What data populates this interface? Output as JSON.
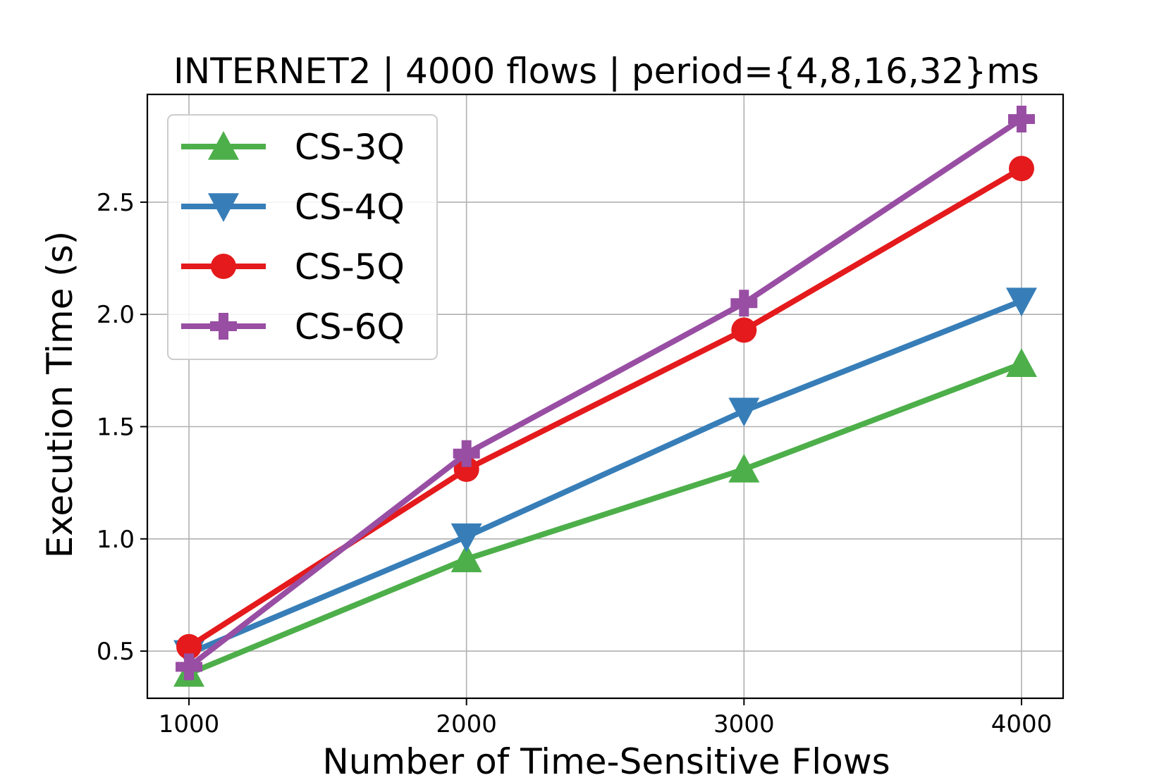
{
  "chart_data": {
    "type": "line",
    "title": "INTERNET2 | 4000 flows | period={4,8,16,32}ms",
    "xlabel": "Number of Time-Sensitive Flows",
    "ylabel": "Execution Time (s)",
    "x": [
      1000,
      2000,
      3000,
      4000
    ],
    "x_ticks": [
      "1000",
      "2000",
      "3000",
      "4000"
    ],
    "y_ticks": [
      "0.5",
      "1.0",
      "1.5",
      "2.0",
      "2.5"
    ],
    "xlim": [
      850,
      4150
    ],
    "ylim": [
      0.29,
      2.98
    ],
    "grid": true,
    "legend_position": "upper-left",
    "series": [
      {
        "name": "CS-3Q",
        "color": "#4daf4a",
        "marker": "triangle-up",
        "values": [
          0.4,
          0.91,
          1.31,
          1.78
        ]
      },
      {
        "name": "CS-4Q",
        "color": "#377eb8",
        "marker": "triangle-down",
        "values": [
          0.49,
          1.01,
          1.57,
          2.06
        ]
      },
      {
        "name": "CS-5Q",
        "color": "#e41a1c",
        "marker": "circle",
        "values": [
          0.52,
          1.31,
          1.93,
          2.65
        ]
      },
      {
        "name": "CS-6Q",
        "color": "#984ea3",
        "marker": "plus",
        "values": [
          0.43,
          1.38,
          2.05,
          2.87
        ]
      }
    ]
  }
}
